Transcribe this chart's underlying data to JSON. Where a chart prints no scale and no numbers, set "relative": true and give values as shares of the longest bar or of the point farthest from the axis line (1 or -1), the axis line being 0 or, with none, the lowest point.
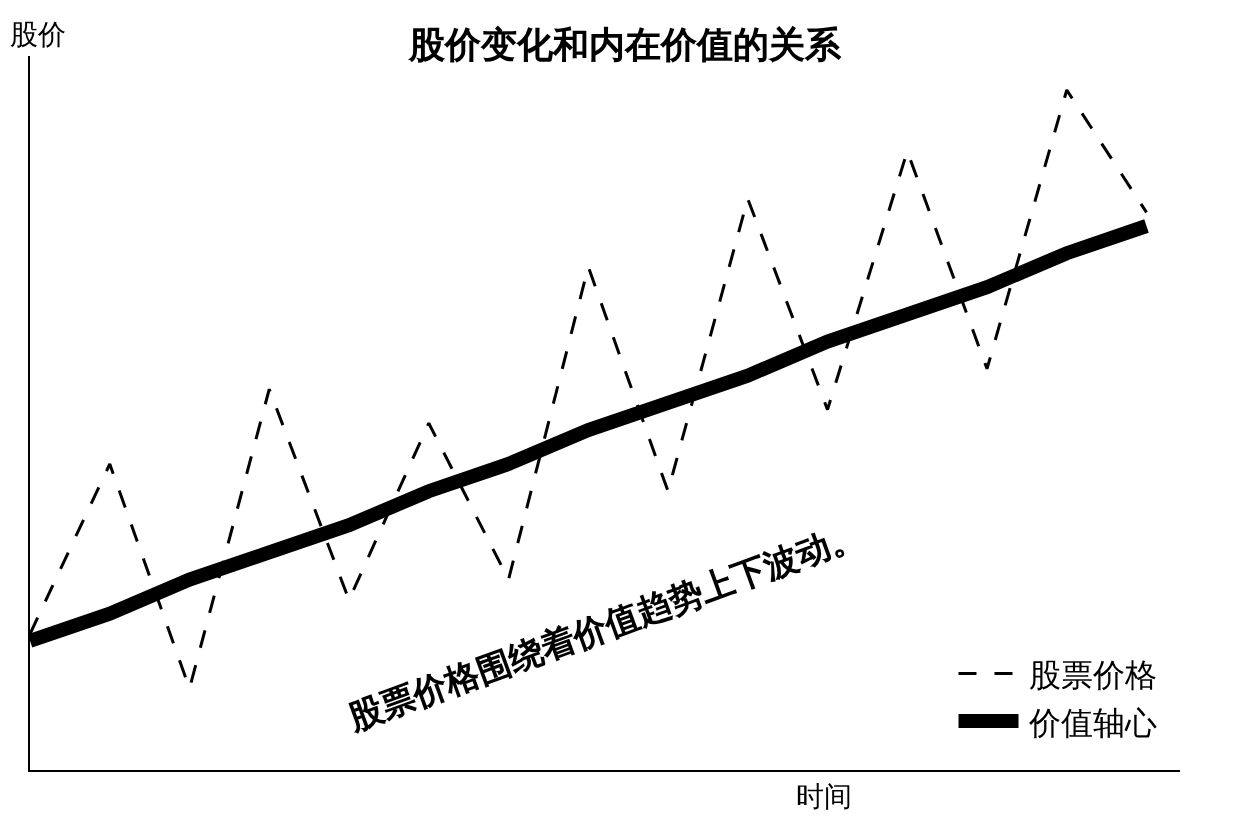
{
  "chart_data": {
    "type": "line",
    "relative": true,
    "title": "股价变化和内在价值的关系",
    "xlabel": "时间",
    "ylabel": "股价",
    "annotations": [
      "股票价格围绕着价值趋势上下波动。"
    ],
    "legend": "bottom right",
    "grid": false,
    "marker": "none",
    "categories": [
      null,
      null,
      null,
      null,
      null,
      null,
      null,
      null,
      null,
      null,
      null,
      null,
      null,
      null,
      null
    ],
    "series": [
      {
        "name": "股票价格",
        "color": "#000000",
        "line_style": "dashed",
        "values": [
          0.2,
          0.45,
          0.12,
          0.56,
          0.25,
          0.51,
          0.28,
          0.74,
          0.41,
          0.84,
          0.53,
          0.91,
          0.59,
          1.0,
          0.82
        ]
      },
      {
        "name": "价值轴心",
        "color": "#000000",
        "line_style": "solid",
        "values": [
          0.19,
          0.23,
          0.28,
          0.32,
          0.36,
          0.41,
          0.45,
          0.5,
          0.54,
          0.58,
          0.63,
          0.67,
          0.71,
          0.76,
          0.8
        ]
      }
    ]
  }
}
